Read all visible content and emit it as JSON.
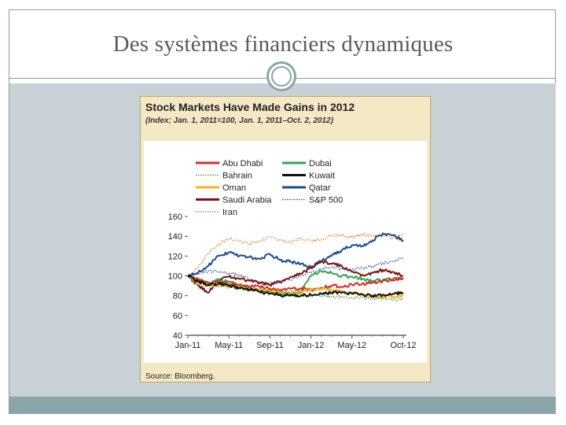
{
  "slide": {
    "title": "Des systèmes financiers dynamiques"
  },
  "colors": {
    "panel": "#c7d1d6",
    "accent": "#8aa6a8",
    "chart_bg": "#f5e8c4",
    "title_text": "#5a5a5a"
  },
  "icons": [
    "circle-ornament-icon"
  ],
  "chart_data": {
    "type": "line",
    "title": "Stock Markets Have Made Gains in 2012",
    "subtitle": "(Index; Jan. 1, 2011=100, Jan. 1, 2011–Oct. 2, 2012)",
    "source": "Source: Bloomberg.",
    "ylim": [
      40,
      160
    ],
    "yticks": [
      40,
      60,
      80,
      100,
      120,
      140,
      160
    ],
    "xlim": [
      0,
      21
    ],
    "xticks": [
      {
        "label": "Jan-11",
        "value": 0
      },
      {
        "label": "May-11",
        "value": 4
      },
      {
        "label": "Sep-11",
        "value": 8
      },
      {
        "label": "Jan-12",
        "value": 12
      },
      {
        "label": "May-12",
        "value": 16
      },
      {
        "label": "Oct-12",
        "value": 21
      }
    ],
    "series": [
      {
        "name": "Abu Dhabi",
        "color": "#d92a2a",
        "dash": "solid",
        "x": [
          0,
          1,
          2,
          3,
          4,
          5,
          6,
          7,
          8,
          9,
          10,
          11,
          12,
          13,
          14,
          15,
          16,
          17,
          18,
          19,
          20,
          21
        ],
        "values": [
          100,
          96,
          93,
          94,
          92,
          90,
          89,
          89,
          87,
          86,
          87,
          87,
          86,
          88,
          90,
          89,
          91,
          92,
          93,
          95,
          96,
          98
        ]
      },
      {
        "name": "Dubai",
        "color": "#2fa84f",
        "dash": "solid",
        "x": [
          0,
          1,
          2,
          3,
          4,
          5,
          6,
          7,
          8,
          9,
          10,
          11,
          12,
          13,
          14,
          15,
          16,
          17,
          18,
          19,
          20,
          21
        ],
        "values": [
          100,
          95,
          93,
          96,
          94,
          91,
          87,
          86,
          84,
          82,
          81,
          84,
          100,
          105,
          103,
          100,
          99,
          97,
          95,
          96,
          97,
          97
        ]
      },
      {
        "name": "Bahrain",
        "color": "#6a9a4a",
        "dash": "dotted",
        "x": [
          0,
          1,
          2,
          3,
          4,
          5,
          6,
          7,
          8,
          9,
          10,
          11,
          12,
          13,
          14,
          15,
          16,
          17,
          18,
          19,
          20,
          21
        ],
        "values": [
          100,
          96,
          92,
          90,
          89,
          87,
          86,
          85,
          84,
          83,
          82,
          81,
          80,
          80,
          79,
          79,
          78,
          78,
          77,
          77,
          76,
          76
        ]
      },
      {
        "name": "Kuwait",
        "color": "#111111",
        "dash": "solid",
        "x": [
          0,
          1,
          2,
          3,
          4,
          5,
          6,
          7,
          8,
          9,
          10,
          11,
          12,
          13,
          14,
          15,
          16,
          17,
          18,
          19,
          20,
          21
        ],
        "values": [
          100,
          94,
          91,
          92,
          90,
          88,
          86,
          84,
          82,
          81,
          80,
          80,
          81,
          82,
          83,
          83,
          82,
          81,
          80,
          81,
          82,
          83
        ]
      },
      {
        "name": "Oman",
        "color": "#f2b51c",
        "dash": "solid",
        "x": [
          0,
          1,
          2,
          3,
          4,
          5,
          6,
          7,
          8,
          9,
          10,
          11,
          12,
          13,
          14,
          15,
          16,
          17,
          18,
          19,
          20,
          21
        ],
        "values": [
          100,
          92,
          90,
          91,
          90,
          89,
          87,
          86,
          85,
          84,
          83,
          84,
          86,
          87,
          86,
          85,
          83,
          82,
          80,
          79,
          79,
          80
        ]
      },
      {
        "name": "Qatar",
        "color": "#1f4e8c",
        "dash": "solid",
        "x": [
          0,
          1,
          2,
          3,
          4,
          5,
          6,
          7,
          8,
          9,
          10,
          11,
          12,
          13,
          14,
          15,
          16,
          17,
          18,
          19,
          20,
          21
        ],
        "values": [
          100,
          103,
          110,
          120,
          124,
          120,
          119,
          117,
          122,
          116,
          114,
          112,
          109,
          115,
          120,
          126,
          131,
          130,
          136,
          143,
          141,
          136
        ]
      },
      {
        "name": "Saudi Arabia",
        "color": "#7a1518",
        "dash": "solid",
        "x": [
          0,
          1,
          2,
          3,
          4,
          5,
          6,
          7,
          8,
          9,
          10,
          11,
          12,
          13,
          14,
          15,
          16,
          17,
          18,
          19,
          20,
          21
        ],
        "values": [
          100,
          90,
          83,
          96,
          99,
          97,
          95,
          93,
          91,
          94,
          99,
          102,
          108,
          115,
          112,
          110,
          104,
          101,
          103,
          106,
          104,
          100
        ]
      },
      {
        "name": "S&P 500",
        "color": "#3f5ca8",
        "dash": "dotted",
        "x": [
          0,
          1,
          2,
          3,
          4,
          5,
          6,
          7,
          8,
          9,
          10,
          11,
          12,
          13,
          14,
          15,
          16,
          17,
          18,
          19,
          20,
          21
        ],
        "values": [
          100,
          102,
          105,
          104,
          103,
          101,
          96,
          94,
          92,
          95,
          96,
          100,
          103,
          107,
          109,
          107,
          106,
          108,
          110,
          113,
          115,
          118
        ]
      },
      {
        "name": "Iran",
        "color": "#e8854a",
        "dash": "dotted",
        "x": [
          0,
          1,
          2,
          3,
          4,
          5,
          6,
          7,
          8,
          9,
          10,
          11,
          12,
          13,
          14,
          15,
          16,
          17,
          18,
          19,
          20,
          21
        ],
        "values": [
          100,
          108,
          123,
          132,
          137,
          135,
          133,
          135,
          139,
          136,
          134,
          138,
          135,
          137,
          140,
          141,
          139,
          142,
          140,
          141,
          138,
          143
        ]
      }
    ]
  }
}
